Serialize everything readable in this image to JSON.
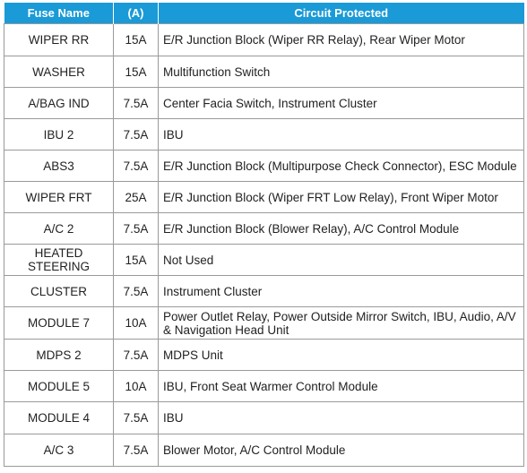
{
  "colors": {
    "header_bg": "#1a9ad6",
    "header_text": "#ffffff",
    "grid": "#9a9a9a"
  },
  "headers": {
    "fuse_name": "Fuse Name",
    "amp": "(A)",
    "circuit": "Circuit Protected"
  },
  "rows": [
    {
      "name": "WIPER RR",
      "amp": "15A",
      "circuit": "E/R Junction Block (Wiper RR Relay), Rear Wiper Motor"
    },
    {
      "name": "WASHER",
      "amp": "15A",
      "circuit": "Multifunction Switch"
    },
    {
      "name": "A/BAG IND",
      "amp": "7.5A",
      "circuit": "Center Facia Switch, Instrument Cluster"
    },
    {
      "name": "IBU 2",
      "amp": "7.5A",
      "circuit": "IBU"
    },
    {
      "name": "ABS3",
      "amp": "7.5A",
      "circuit": "E/R Junction Block (Multipurpose Check Connector), ESC Module"
    },
    {
      "name": "WIPER FRT",
      "amp": "25A",
      "circuit": "E/R Junction Block (Wiper FRT Low Relay), Front Wiper Motor"
    },
    {
      "name": "A/C 2",
      "amp": "7.5A",
      "circuit": "E/R Junction Block (Blower Relay), A/C Control Module"
    },
    {
      "name": "HEATED STEERING",
      "amp": "15A",
      "circuit": "Not Used"
    },
    {
      "name": "CLUSTER",
      "amp": "7.5A",
      "circuit": "Instrument Cluster"
    },
    {
      "name": "MODULE 7",
      "amp": "10A",
      "circuit": "Power Outlet Relay, Power Outside Mirror Switch, IBU, Audio, A/V & Navigation Head Unit"
    },
    {
      "name": "MDPS 2",
      "amp": "7.5A",
      "circuit": "MDPS Unit"
    },
    {
      "name": "MODULE 5",
      "amp": "10A",
      "circuit": "IBU, Front Seat Warmer Control Module"
    },
    {
      "name": "MODULE 4",
      "amp": "7.5A",
      "circuit": "IBU"
    },
    {
      "name": "A/C 3",
      "amp": "7.5A",
      "circuit": "Blower Motor, A/C Control Module"
    }
  ]
}
